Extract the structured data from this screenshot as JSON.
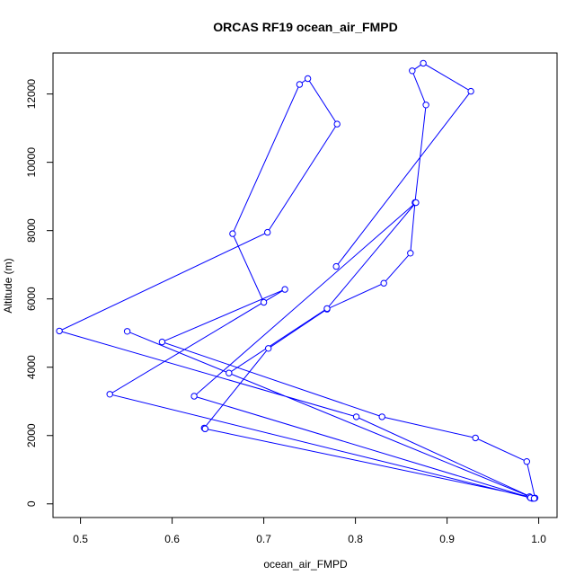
{
  "chart_data": {
    "type": "line",
    "title": "ORCAS RF19 ocean_air_FMPD",
    "xlabel": "ocean_air_FMPD",
    "ylabel": "Altitude (m)",
    "xlim": [
      0.47,
      1.02
    ],
    "ylim": [
      -400,
      13200
    ],
    "x_ticks": [
      "0.5",
      "0.6",
      "0.7",
      "0.8",
      "0.9",
      "1.0"
    ],
    "y_ticks": [
      "0",
      "2000",
      "4000",
      "6000",
      "8000",
      "10000",
      "12000"
    ],
    "grid": false,
    "series_color": "#0000ff",
    "series": [
      {
        "x": [
          0.779,
          0.926,
          0.874,
          0.862,
          0.877,
          0.865,
          0.86,
          0.831,
          0.769,
          0.705,
          0.635,
          0.636
        ],
        "y": [
          6950,
          12080,
          12900,
          12680,
          11680,
          8820,
          7340,
          6460,
          5700,
          4550,
          2220,
          2200
        ]
      },
      {
        "x": [
          0.636,
          0.99,
          0.993,
          0.996,
          0.987,
          0.931,
          0.829,
          0.589,
          0.723,
          0.532,
          0.991
        ],
        "y": [
          2200,
          210,
          160,
          170,
          1240,
          1930,
          2550,
          4740,
          6280,
          3210,
          180
        ]
      },
      {
        "x": [
          0.991,
          0.624,
          0.866,
          0.769,
          0.662,
          0.551,
          0.995,
          0.801,
          0.477,
          0.704,
          0.78,
          0.748,
          0.739,
          0.666,
          0.7
        ],
        "y": [
          180,
          3150,
          8820,
          5720,
          3830,
          5050,
          160,
          2550,
          5060,
          7950,
          11120,
          12450,
          12280,
          7910,
          5900
        ]
      }
    ]
  }
}
